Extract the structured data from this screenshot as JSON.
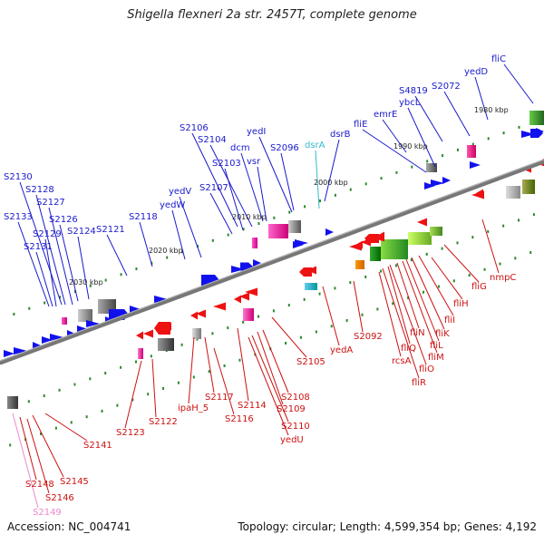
{
  "title": "Shigella flexneri 2a str. 2457T, complete genome",
  "footer": {
    "accession": "Accession: NC_004741",
    "stats": "Topology: circular; Length: 4,599,354 bp; Genes: 4,192"
  },
  "colors": {
    "forward_label": "#1a1acc",
    "reverse_label": "#cc1111",
    "rna_label": "#33bbcc",
    "pink_label": "#ee88cc",
    "genome_ring": "#777777"
  },
  "scale_labels": [
    "2030 kbp",
    "2020 kbp",
    "2010 kbp",
    "2000 kbp",
    "1990 kbp",
    "1980 kbp"
  ],
  "forward_genes": [
    "S2130",
    "S2128",
    "S2127",
    "S2133",
    "S2126",
    "S2129",
    "S2124",
    "S2131",
    "S2121",
    "S2118",
    "yedW",
    "yedV",
    "S2107",
    "S2106",
    "S2104",
    "S2103",
    "dcm",
    "vsr",
    "yedI",
    "S2096",
    "dsrB",
    "fliE",
    "emrE",
    "ybcL",
    "S4819",
    "S2072",
    "yedD",
    "fliC"
  ],
  "rna_genes": [
    "dsrA"
  ],
  "reverse_genes": [
    "S2141",
    "S2148",
    "S2145",
    "S2146",
    "S2123",
    "S2122",
    "ipaH_5",
    "S2117",
    "S2116",
    "S2114",
    "S2108",
    "S2109",
    "S2110",
    "yedU",
    "S2105",
    "yedA",
    "S2092",
    "rcsA",
    "fliR",
    "fliQ",
    "fliO",
    "fliN",
    "fliM",
    "fliL",
    "fliK",
    "fliI",
    "fliH",
    "fliG",
    "nmpC"
  ],
  "pink_genes": [
    "S2149"
  ]
}
